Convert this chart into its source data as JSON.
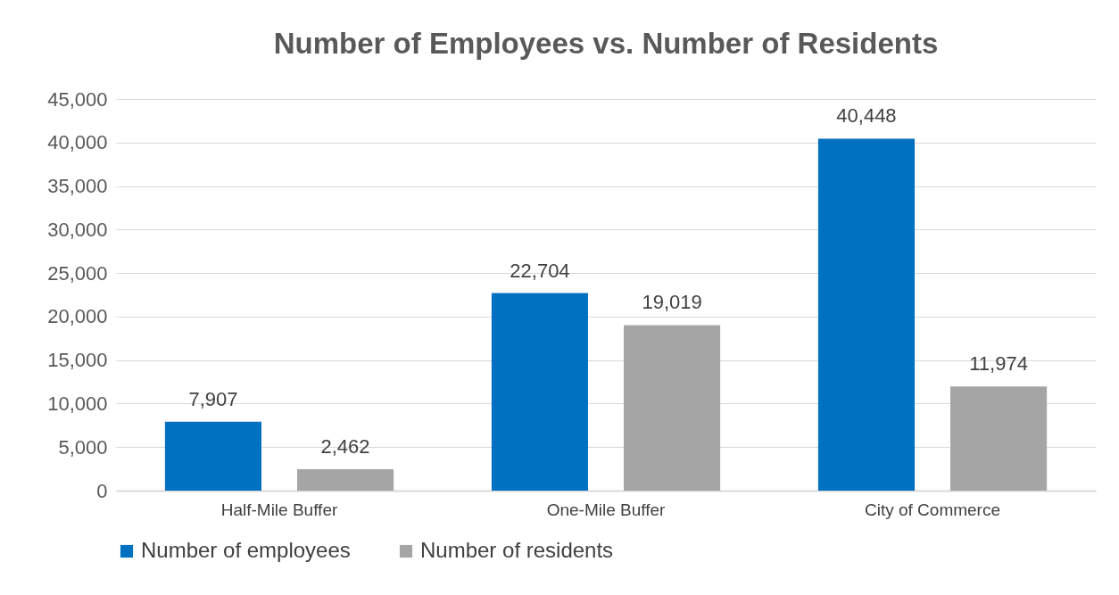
{
  "chart_data": {
    "type": "bar",
    "title": "Number of Employees vs. Number of Residents",
    "categories": [
      "Half-Mile Buffer",
      "One-Mile Buffer",
      "City of Commerce"
    ],
    "series": [
      {
        "name": "Number of employees",
        "color": "#0070c0",
        "values": [
          7907,
          22704,
          40448
        ],
        "value_labels": [
          "7,907",
          "22,704",
          "40,448"
        ]
      },
      {
        "name": "Number of residents",
        "color": "#a5a5a5",
        "values": [
          2462,
          19019,
          11974
        ],
        "value_labels": [
          "2,462",
          "19,019",
          "11,974"
        ]
      }
    ],
    "ylim": [
      0,
      45000
    ],
    "yticks": [
      {
        "value": 0,
        "label": "0"
      },
      {
        "value": 5000,
        "label": "5,000"
      },
      {
        "value": 10000,
        "label": "10,000"
      },
      {
        "value": 15000,
        "label": "15,000"
      },
      {
        "value": 20000,
        "label": "20,000"
      },
      {
        "value": 25000,
        "label": "25,000"
      },
      {
        "value": 30000,
        "label": "30,000"
      },
      {
        "value": 35000,
        "label": "35,000"
      },
      {
        "value": 40000,
        "label": "40,000"
      },
      {
        "value": 45000,
        "label": "45,000"
      }
    ],
    "grid": "y",
    "legend": "bottom"
  }
}
